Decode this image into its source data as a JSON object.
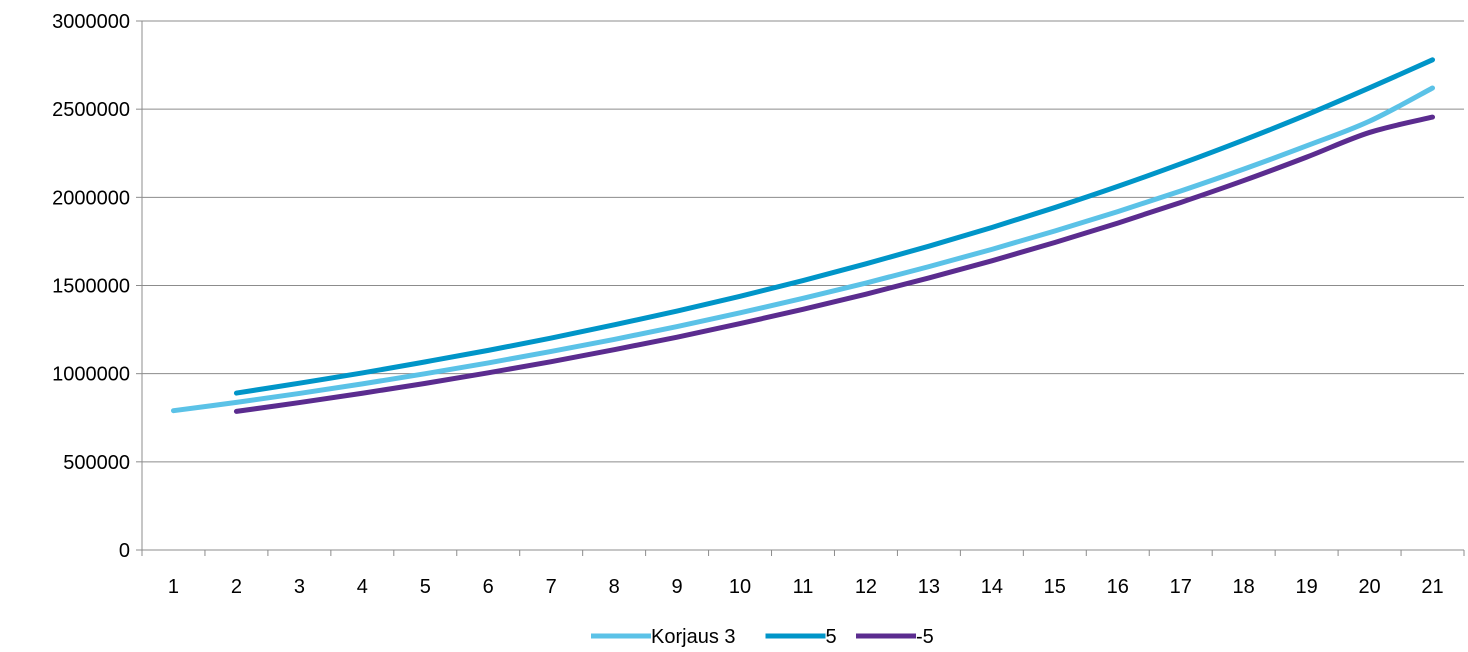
{
  "chart_data": {
    "type": "line",
    "x": [
      "1",
      "2",
      "3",
      "4",
      "5",
      "6",
      "7",
      "8",
      "9",
      "10",
      "11",
      "12",
      "13",
      "14",
      "15",
      "16",
      "17",
      "18",
      "19",
      "20",
      "21"
    ],
    "ylim": [
      0,
      3000000
    ],
    "y_ticks": [
      "0",
      "500000",
      "1000000",
      "1500000",
      "2000000",
      "2500000",
      "3000000"
    ],
    "grid": "horizontal",
    "legend_position": "bottom",
    "series": [
      {
        "name": "Korjaus 3",
        "color": "#5bc2e7",
        "values": [
          790000,
          837000,
          888000,
          942000,
          1000000,
          1061000,
          1126000,
          1194000,
          1267000,
          1345000,
          1427000,
          1514000,
          1607000,
          1705000,
          1809000,
          1919000,
          2036000,
          2160000,
          2292000,
          2432000,
          2620000
        ]
      },
      {
        "name": "5",
        "color": "#0095c8",
        "values": [
          null,
          890000,
          946000,
          1004000,
          1067000,
          1132000,
          1202000,
          1277000,
          1355000,
          1439000,
          1528000,
          1623000,
          1723000,
          1829000,
          1942000,
          2062000,
          2190000,
          2325000,
          2468000,
          2621000,
          2780000
        ]
      },
      {
        "name": "-5",
        "color": "#5b2c8f",
        "values": [
          null,
          786000,
          836000,
          889000,
          945000,
          1005000,
          1068000,
          1136000,
          1207000,
          1284000,
          1365000,
          1451000,
          1543000,
          1640000,
          1744000,
          1854000,
          1971000,
          2095000,
          2228000,
          2368000,
          2455000
        ]
      }
    ]
  }
}
